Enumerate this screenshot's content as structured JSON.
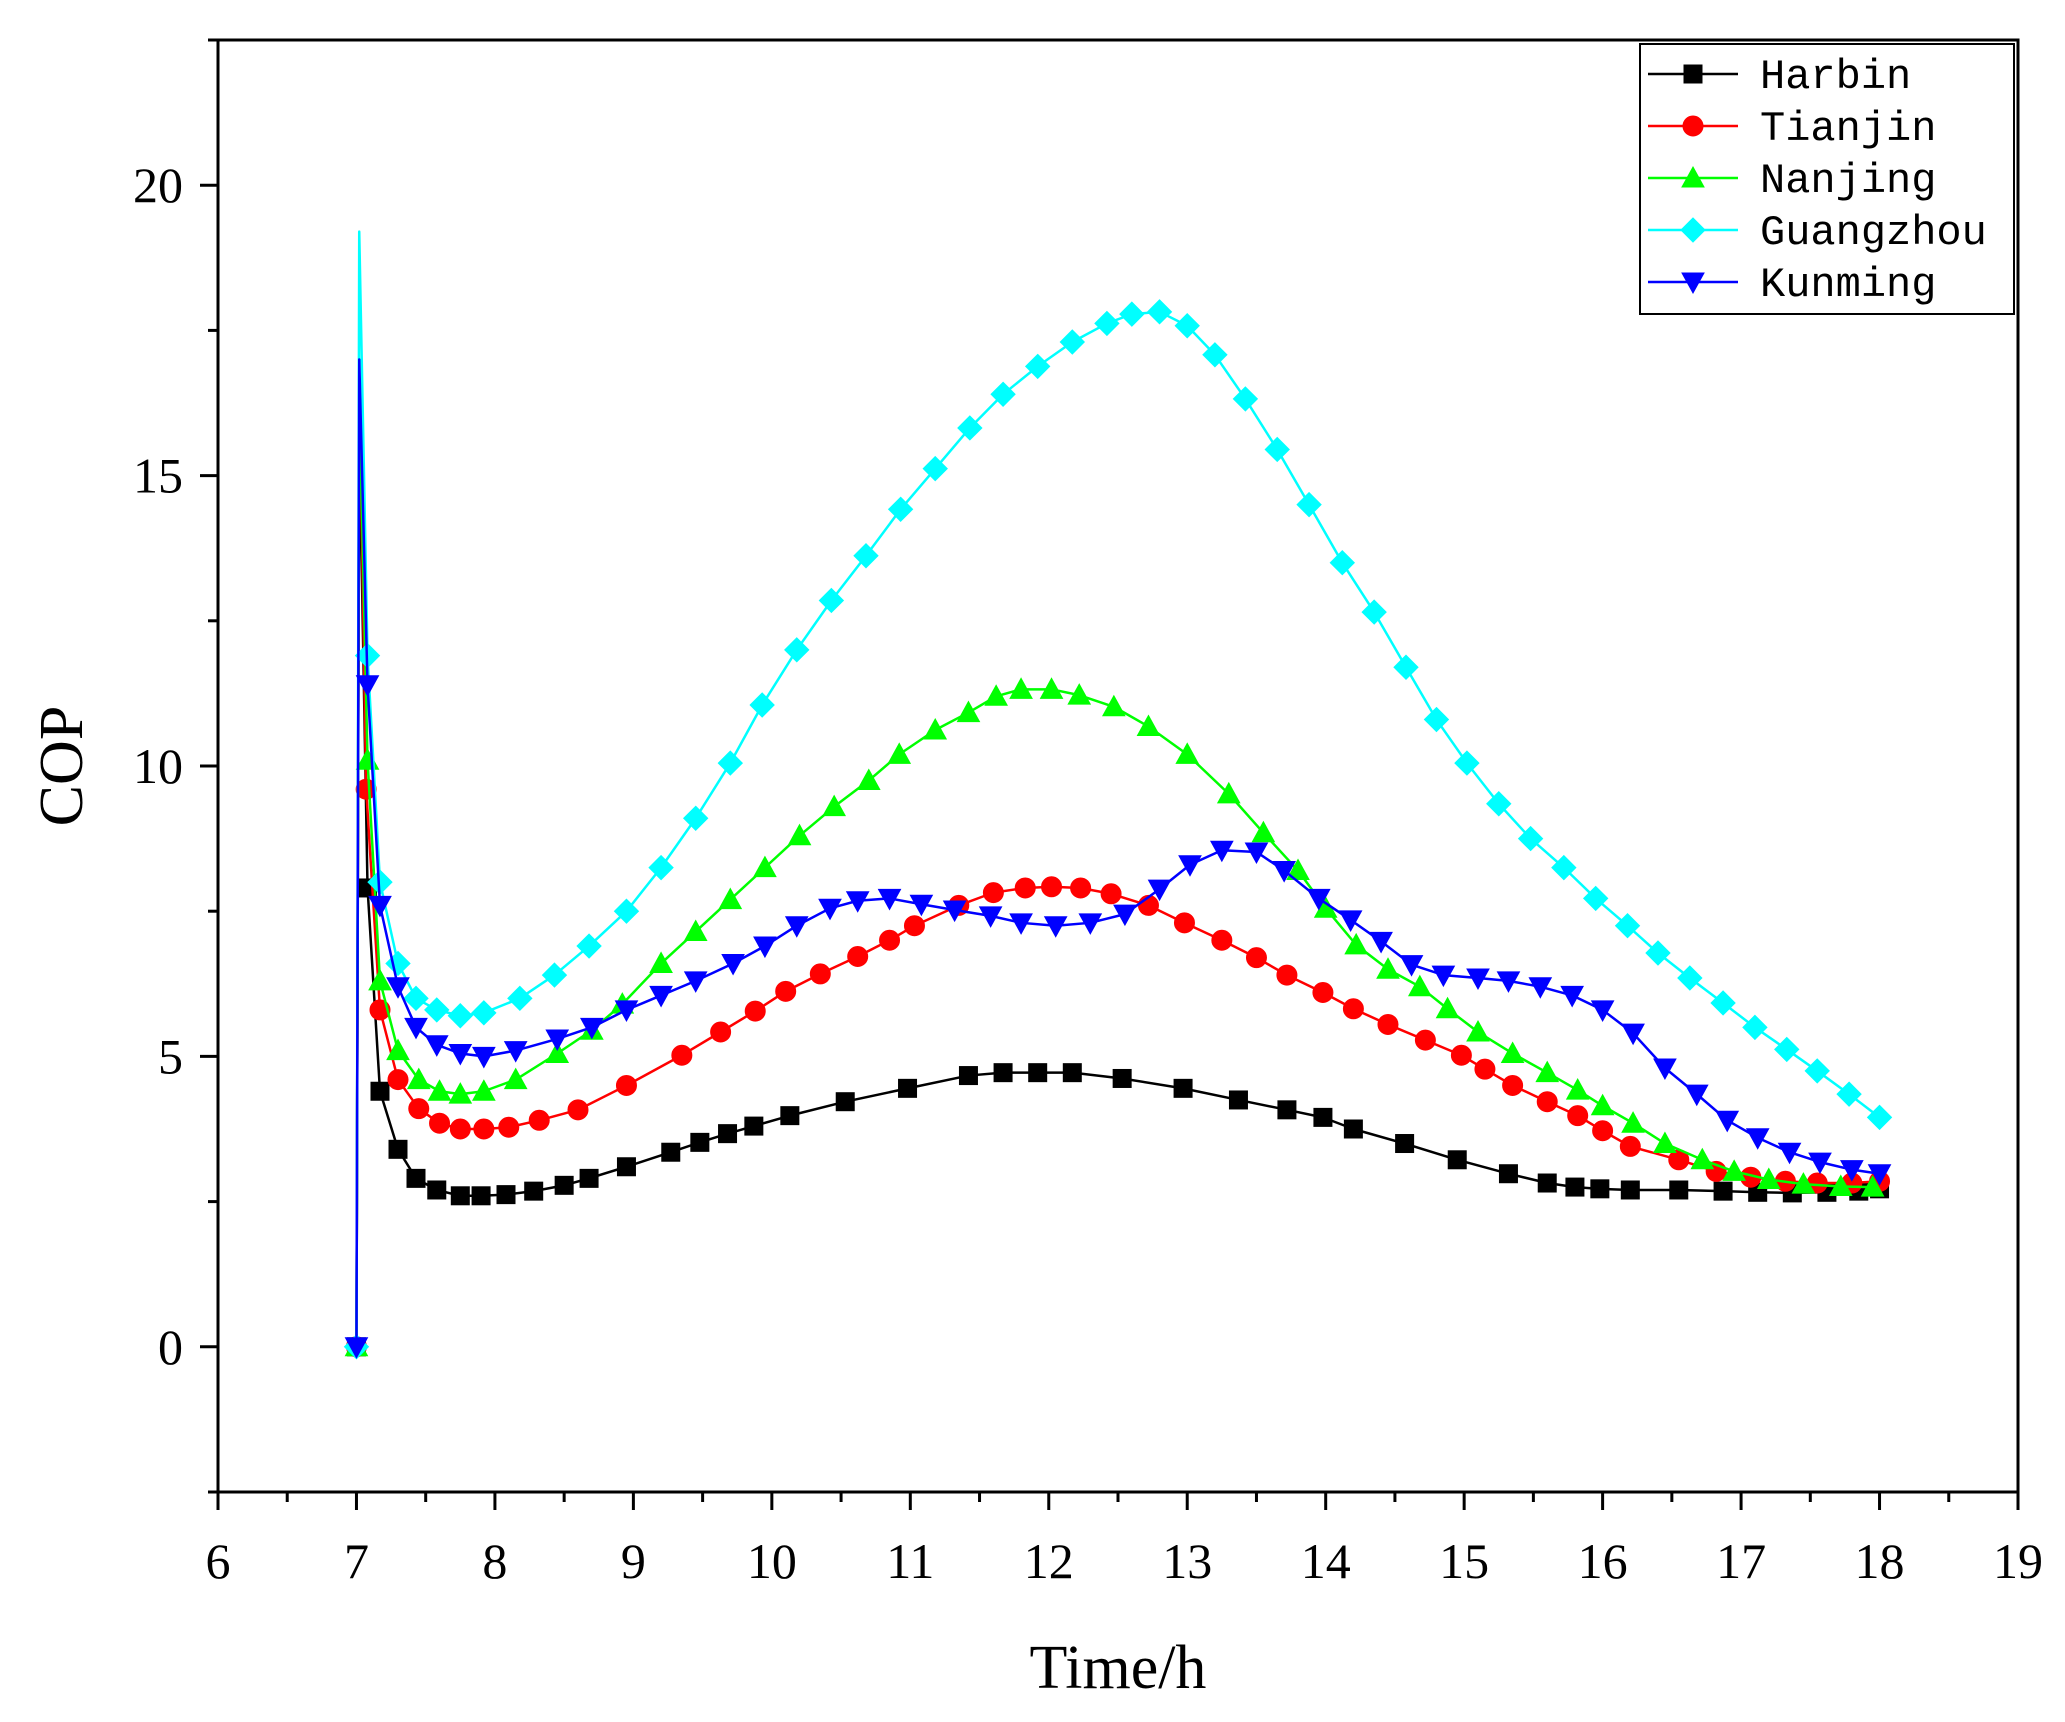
{
  "chart_data": {
    "type": "line",
    "title": "",
    "xlabel": "Time/h",
    "ylabel": "COP",
    "xlim": [
      6,
      19
    ],
    "ylim": [
      -2.5,
      22.5
    ],
    "x_ticks": [
      6,
      7,
      8,
      9,
      10,
      11,
      12,
      13,
      14,
      15,
      16,
      17,
      18,
      19
    ],
    "y_ticks": [
      0,
      5,
      10,
      15,
      20
    ],
    "legend_position": "top-right",
    "series": [
      {
        "name": "Harbin",
        "color": "#000000",
        "marker": "square",
        "peak": [
          7.02,
          15.8
        ],
        "points": [
          [
            7.0,
            0.0
          ],
          [
            7.08,
            7.9
          ],
          [
            7.17,
            4.4
          ],
          [
            7.3,
            3.4
          ],
          [
            7.43,
            2.9
          ],
          [
            7.58,
            2.7
          ],
          [
            7.75,
            2.6
          ],
          [
            7.9,
            2.6
          ],
          [
            8.08,
            2.62
          ],
          [
            8.28,
            2.68
          ],
          [
            8.5,
            2.78
          ],
          [
            8.68,
            2.9
          ],
          [
            8.95,
            3.1
          ],
          [
            9.27,
            3.35
          ],
          [
            9.48,
            3.52
          ],
          [
            9.68,
            3.67
          ],
          [
            9.87,
            3.8
          ],
          [
            10.13,
            3.98
          ],
          [
            10.53,
            4.22
          ],
          [
            10.98,
            4.45
          ],
          [
            11.42,
            4.67
          ],
          [
            11.67,
            4.72
          ],
          [
            11.92,
            4.72
          ],
          [
            12.17,
            4.72
          ],
          [
            12.53,
            4.62
          ],
          [
            12.97,
            4.45
          ],
          [
            13.37,
            4.25
          ],
          [
            13.72,
            4.08
          ],
          [
            13.98,
            3.95
          ],
          [
            14.2,
            3.75
          ],
          [
            14.57,
            3.5
          ],
          [
            14.95,
            3.22
          ],
          [
            15.32,
            2.98
          ],
          [
            15.6,
            2.82
          ],
          [
            15.8,
            2.75
          ],
          [
            15.98,
            2.72
          ],
          [
            16.2,
            2.7
          ],
          [
            16.55,
            2.7
          ],
          [
            16.87,
            2.68
          ],
          [
            17.12,
            2.66
          ],
          [
            17.37,
            2.65
          ],
          [
            17.62,
            2.66
          ],
          [
            17.85,
            2.68
          ],
          [
            18.0,
            2.72
          ]
        ]
      },
      {
        "name": "Tianjin",
        "color": "#ff0000",
        "marker": "circle",
        "peak": [
          7.02,
          16.8
        ],
        "points": [
          [
            7.0,
            0.0
          ],
          [
            7.07,
            9.6
          ],
          [
            7.17,
            5.8
          ],
          [
            7.3,
            4.6
          ],
          [
            7.45,
            4.1
          ],
          [
            7.6,
            3.85
          ],
          [
            7.75,
            3.75
          ],
          [
            7.92,
            3.75
          ],
          [
            8.1,
            3.78
          ],
          [
            8.32,
            3.9
          ],
          [
            8.6,
            4.08
          ],
          [
            8.95,
            4.5
          ],
          [
            9.35,
            5.02
          ],
          [
            9.63,
            5.42
          ],
          [
            9.88,
            5.78
          ],
          [
            10.1,
            6.12
          ],
          [
            10.35,
            6.42
          ],
          [
            10.62,
            6.72
          ],
          [
            10.85,
            7.0
          ],
          [
            11.03,
            7.25
          ],
          [
            11.35,
            7.6
          ],
          [
            11.6,
            7.82
          ],
          [
            11.83,
            7.9
          ],
          [
            12.02,
            7.92
          ],
          [
            12.23,
            7.9
          ],
          [
            12.45,
            7.8
          ],
          [
            12.72,
            7.6
          ],
          [
            12.98,
            7.3
          ],
          [
            13.25,
            7.0
          ],
          [
            13.5,
            6.7
          ],
          [
            13.72,
            6.4
          ],
          [
            13.98,
            6.1
          ],
          [
            14.2,
            5.82
          ],
          [
            14.45,
            5.55
          ],
          [
            14.72,
            5.28
          ],
          [
            14.98,
            5.02
          ],
          [
            15.15,
            4.78
          ],
          [
            15.35,
            4.5
          ],
          [
            15.6,
            4.22
          ],
          [
            15.82,
            3.98
          ],
          [
            16.0,
            3.72
          ],
          [
            16.2,
            3.45
          ],
          [
            16.55,
            3.22
          ],
          [
            16.82,
            3.02
          ],
          [
            17.07,
            2.92
          ],
          [
            17.32,
            2.85
          ],
          [
            17.55,
            2.82
          ],
          [
            17.8,
            2.82
          ],
          [
            18.0,
            2.85
          ]
        ]
      },
      {
        "name": "Nanjing",
        "color": "#00ff00",
        "marker": "triangle-up",
        "peak": [
          7.02,
          16.5
        ],
        "points": [
          [
            7.0,
            0.0
          ],
          [
            7.08,
            10.1
          ],
          [
            7.17,
            6.3
          ],
          [
            7.3,
            5.1
          ],
          [
            7.45,
            4.6
          ],
          [
            7.6,
            4.4
          ],
          [
            7.75,
            4.35
          ],
          [
            7.92,
            4.4
          ],
          [
            8.15,
            4.6
          ],
          [
            8.45,
            5.05
          ],
          [
            8.7,
            5.45
          ],
          [
            8.92,
            5.9
          ],
          [
            9.2,
            6.6
          ],
          [
            9.45,
            7.15
          ],
          [
            9.7,
            7.7
          ],
          [
            9.95,
            8.25
          ],
          [
            10.2,
            8.8
          ],
          [
            10.45,
            9.3
          ],
          [
            10.7,
            9.75
          ],
          [
            10.92,
            10.2
          ],
          [
            11.18,
            10.62
          ],
          [
            11.42,
            10.92
          ],
          [
            11.62,
            11.2
          ],
          [
            11.8,
            11.32
          ],
          [
            12.02,
            11.32
          ],
          [
            12.22,
            11.22
          ],
          [
            12.47,
            11.02
          ],
          [
            12.72,
            10.68
          ],
          [
            13.0,
            10.2
          ],
          [
            13.3,
            9.52
          ],
          [
            13.55,
            8.85
          ],
          [
            13.8,
            8.2
          ],
          [
            14.0,
            7.55
          ],
          [
            14.22,
            6.92
          ],
          [
            14.45,
            6.5
          ],
          [
            14.68,
            6.2
          ],
          [
            14.88,
            5.82
          ],
          [
            15.1,
            5.42
          ],
          [
            15.35,
            5.05
          ],
          [
            15.6,
            4.72
          ],
          [
            15.82,
            4.42
          ],
          [
            16.0,
            4.15
          ],
          [
            16.22,
            3.85
          ],
          [
            16.45,
            3.5
          ],
          [
            16.72,
            3.22
          ],
          [
            16.95,
            3.02
          ],
          [
            17.2,
            2.88
          ],
          [
            17.45,
            2.8
          ],
          [
            17.72,
            2.76
          ],
          [
            17.95,
            2.75
          ]
        ]
      },
      {
        "name": "Guangzhou",
        "color": "#00ffff",
        "marker": "diamond",
        "peak": [
          7.02,
          19.2
        ],
        "points": [
          [
            7.0,
            0.0
          ],
          [
            7.08,
            11.9
          ],
          [
            7.17,
            8.0
          ],
          [
            7.3,
            6.6
          ],
          [
            7.43,
            6.0
          ],
          [
            7.58,
            5.8
          ],
          [
            7.75,
            5.7
          ],
          [
            7.92,
            5.75
          ],
          [
            8.18,
            6.0
          ],
          [
            8.43,
            6.4
          ],
          [
            8.68,
            6.9
          ],
          [
            8.95,
            7.5
          ],
          [
            9.2,
            8.25
          ],
          [
            9.45,
            9.1
          ],
          [
            9.7,
            10.05
          ],
          [
            9.93,
            11.05
          ],
          [
            10.18,
            12.0
          ],
          [
            10.43,
            12.85
          ],
          [
            10.68,
            13.62
          ],
          [
            10.93,
            14.42
          ],
          [
            11.18,
            15.12
          ],
          [
            11.43,
            15.82
          ],
          [
            11.67,
            16.4
          ],
          [
            11.92,
            16.88
          ],
          [
            12.17,
            17.3
          ],
          [
            12.42,
            17.62
          ],
          [
            12.6,
            17.78
          ],
          [
            12.8,
            17.82
          ],
          [
            13.0,
            17.58
          ],
          [
            13.2,
            17.08
          ],
          [
            13.42,
            16.32
          ],
          [
            13.65,
            15.45
          ],
          [
            13.88,
            14.5
          ],
          [
            14.12,
            13.5
          ],
          [
            14.35,
            12.65
          ],
          [
            14.58,
            11.7
          ],
          [
            14.8,
            10.8
          ],
          [
            15.02,
            10.05
          ],
          [
            15.25,
            9.35
          ],
          [
            15.48,
            8.75
          ],
          [
            15.72,
            8.25
          ],
          [
            15.95,
            7.72
          ],
          [
            16.18,
            7.25
          ],
          [
            16.4,
            6.78
          ],
          [
            16.63,
            6.35
          ],
          [
            16.87,
            5.92
          ],
          [
            17.1,
            5.5
          ],
          [
            17.33,
            5.12
          ],
          [
            17.55,
            4.75
          ],
          [
            17.78,
            4.35
          ],
          [
            18.0,
            3.95
          ]
        ]
      },
      {
        "name": "Kunming",
        "color": "#0000ff",
        "marker": "triangle-down",
        "peak": [
          7.02,
          17.0
        ],
        "points": [
          [
            7.0,
            0.0
          ],
          [
            7.08,
            11.4
          ],
          [
            7.17,
            7.6
          ],
          [
            7.3,
            6.2
          ],
          [
            7.43,
            5.5
          ],
          [
            7.58,
            5.2
          ],
          [
            7.75,
            5.05
          ],
          [
            7.92,
            5.0
          ],
          [
            8.15,
            5.1
          ],
          [
            8.45,
            5.3
          ],
          [
            8.7,
            5.5
          ],
          [
            8.95,
            5.8
          ],
          [
            9.2,
            6.05
          ],
          [
            9.45,
            6.3
          ],
          [
            9.72,
            6.6
          ],
          [
            9.95,
            6.9
          ],
          [
            10.18,
            7.25
          ],
          [
            10.42,
            7.55
          ],
          [
            10.62,
            7.68
          ],
          [
            10.85,
            7.72
          ],
          [
            11.08,
            7.62
          ],
          [
            11.32,
            7.52
          ],
          [
            11.58,
            7.42
          ],
          [
            11.8,
            7.3
          ],
          [
            12.05,
            7.25
          ],
          [
            12.3,
            7.3
          ],
          [
            12.55,
            7.45
          ],
          [
            12.8,
            7.88
          ],
          [
            13.02,
            8.3
          ],
          [
            13.25,
            8.55
          ],
          [
            13.5,
            8.52
          ],
          [
            13.7,
            8.2
          ],
          [
            13.95,
            7.72
          ],
          [
            14.18,
            7.35
          ],
          [
            14.4,
            6.98
          ],
          [
            14.62,
            6.58
          ],
          [
            14.85,
            6.4
          ],
          [
            15.1,
            6.35
          ],
          [
            15.32,
            6.3
          ],
          [
            15.55,
            6.2
          ],
          [
            15.78,
            6.05
          ],
          [
            16.0,
            5.8
          ],
          [
            16.22,
            5.4
          ],
          [
            16.45,
            4.8
          ],
          [
            16.68,
            4.35
          ],
          [
            16.9,
            3.9
          ],
          [
            17.12,
            3.6
          ],
          [
            17.35,
            3.35
          ],
          [
            17.57,
            3.18
          ],
          [
            17.8,
            3.05
          ],
          [
            18.0,
            2.98
          ]
        ]
      }
    ]
  }
}
